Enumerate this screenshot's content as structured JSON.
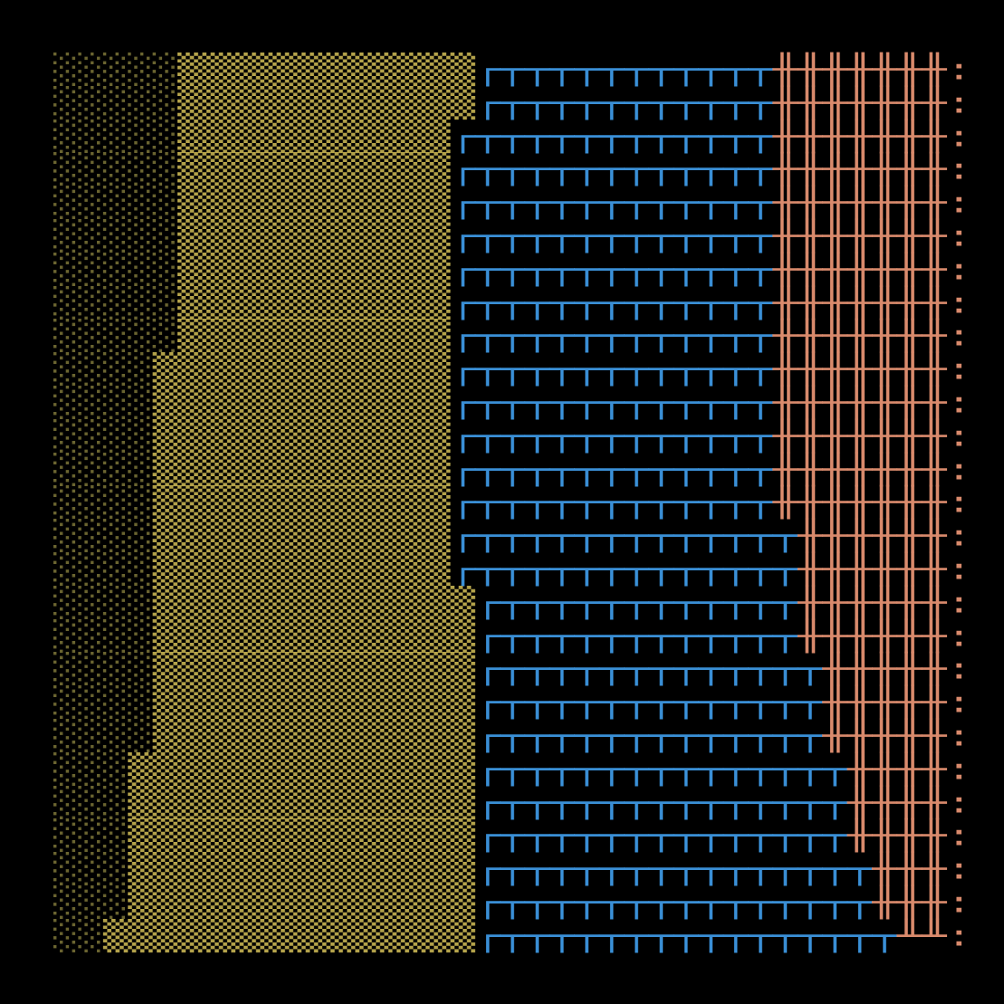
{
  "palette": {
    "░": "#6a6430",
    "▒": "#b3a24a",
    "┌": "#3a8fd6",
    "┬": "#3a8fd6",
    "╫": "#d98a6c",
    "╨": "#d98a6c",
    ":": "#d98a6c"
  },
  "rows": [
    "░░░░░▒▒▒▒▒▒▒▒▒▒▒▒┌┬┬┬┬┬┬┬┬┬┬┬╫╫╫╫╫╫╫:",
    "░░░░░▒▒▒▒▒▒▒▒▒▒▒▒┌┬┬┬┬┬┬┬┬┬┬┬╫╫╫╫╫╫╫:",
    "░░░░░▒▒▒▒▒▒▒▒▒▒▒┌┬┬┬┬┬┬┬┬┬┬┬┬╫╫╫╫╫╫╫:",
    "░░░░░▒▒▒▒▒▒▒▒▒▒▒┌┬┬┬┬┬┬┬┬┬┬┬┬╫╫╫╫╫╫╫:",
    "░░░░░▒▒▒▒▒▒▒▒▒▒▒┌┬┬┬┬┬┬┬┬┬┬┬┬╫╫╫╫╫╫╫:",
    "░░░░░▒▒▒▒▒▒▒▒▒▒▒┌┬┬┬┬┬┬┬┬┬┬┬┬╫╫╫╫╫╫╫:",
    "░░░░░▒▒▒▒▒▒▒▒▒▒▒┌┬┬┬┬┬┬┬┬┬┬┬┬╫╫╫╫╫╫╫:",
    "░░░░░▒▒▒▒▒▒▒▒▒▒▒┌┬┬┬┬┬┬┬┬┬┬┬┬╫╫╫╫╫╫╫:",
    "░░░░░▒▒▒▒▒▒▒▒▒▒▒┌┬┬┬┬┬┬┬┬┬┬┬┬╫╫╫╫╫╫╫:",
    "░░░░▒▒▒▒▒▒▒▒▒▒▒▒┌┬┬┬┬┬┬┬┬┬┬┬┬╫╫╫╫╫╫╫:",
    "░░░░▒▒▒▒▒▒▒▒▒▒▒▒┌┬┬┬┬┬┬┬┬┬┬┬┬╫╫╫╫╫╫╫:",
    "░░░░▒▒▒▒▒▒▒▒▒▒▒▒┌┬┬┬┬┬┬┬┬┬┬┬┬╫╫╫╫╫╫╫:",
    "░░░░▒▒▒▒▒▒▒▒▒▒▒▒┌┬┬┬┬┬┬┬┬┬┬┬┬╫╫╫╫╫╫╫:",
    "░░░░▒▒▒▒▒▒▒▒▒▒▒▒┌┬┬┬┬┬┬┬┬┬┬┬┬╫╫╫╫╫╫╫:",
    "░░░░▒▒▒▒▒▒▒▒▒▒▒▒┌┬┬┬┬┬┬┬┬┬┬┬┬┬╫╫╫╫╫╫:",
    "░░░░▒▒▒▒▒▒▒▒▒▒▒▒┌┬┬┬┬┬┬┬┬┬┬┬┬┬╫╫╫╫╫╫:",
    "░░░░▒▒▒▒▒▒▒▒▒▒▒▒▒┌┬┬┬┬┬┬┬┬┬┬┬┬╫╫╫╫╫╫:",
    "░░░░▒▒▒▒▒▒▒▒▒▒▒▒▒┌┬┬┬┬┬┬┬┬┬┬┬┬╫╫╫╫╫╫:",
    "░░░░▒▒▒▒▒▒▒▒▒▒▒▒▒┌┬┬┬┬┬┬┬┬┬┬┬┬┬╫╫╫╫╫:",
    "░░░░▒▒▒▒▒▒▒▒▒▒▒▒▒┌┬┬┬┬┬┬┬┬┬┬┬┬┬╫╫╫╫╫:",
    "░░░░▒▒▒▒▒▒▒▒▒▒▒▒▒┌┬┬┬┬┬┬┬┬┬┬┬┬┬╫╫╫╫╫:",
    "░░░▒▒▒▒▒▒▒▒▒▒▒▒▒▒┌┬┬┬┬┬┬┬┬┬┬┬┬┬┬╫╫╫╫:",
    "░░░▒▒▒▒▒▒▒▒▒▒▒▒▒▒┌┬┬┬┬┬┬┬┬┬┬┬┬┬┬╫╫╫╫:",
    "░░░▒▒▒▒▒▒▒▒▒▒▒▒▒▒┌┬┬┬┬┬┬┬┬┬┬┬┬┬┬╫╫╫╫:",
    "░░░▒▒▒▒▒▒▒▒▒▒▒▒▒▒┌┬┬┬┬┬┬┬┬┬┬┬┬┬┬┬╫╫╫:",
    "░░░▒▒▒▒▒▒▒▒▒▒▒▒▒▒┌┬┬┬┬┬┬┬┬┬┬┬┬┬┬┬╫╫╫:",
    "░░▒▒▒▒▒▒▒▒▒▒▒▒▒▒▒┌┬┬┬┬┬┬┬┬┬┬┬┬┬┬┬┬╨╨:"
  ]
}
